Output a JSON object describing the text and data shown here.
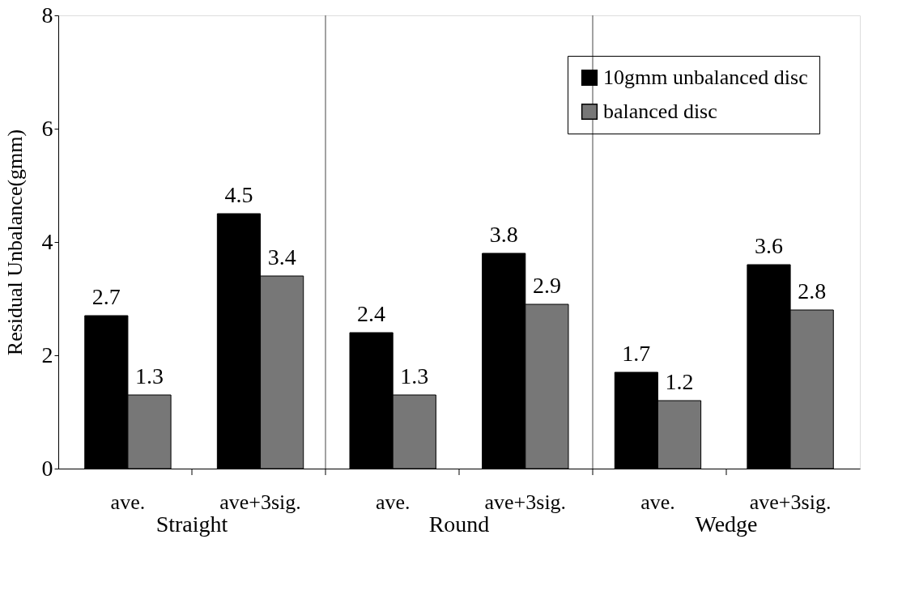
{
  "chart_data": {
    "type": "bar",
    "ylabel": "Residual Unbalance(gmm)",
    "categories": [
      "ave.",
      "ave+3sig.",
      "ave.",
      "ave+3sig.",
      "ave.",
      "ave+3sig."
    ],
    "annotations": [
      "Straight",
      "Round",
      "Wedge"
    ],
    "series": [
      {
        "name": "10gmm unbalanced disc",
        "color": "#000000",
        "values": [
          2.7,
          4.5,
          2.4,
          3.8,
          1.7,
          3.6
        ]
      },
      {
        "name": "balanced disc",
        "color": "#777777",
        "values": [
          1.3,
          3.4,
          1.3,
          2.9,
          1.2,
          2.8
        ]
      }
    ],
    "ylim": [
      0,
      8
    ],
    "yticks": [
      0,
      2,
      4,
      6,
      8
    ],
    "grid": false,
    "legend": "top right",
    "data_labels": true
  }
}
